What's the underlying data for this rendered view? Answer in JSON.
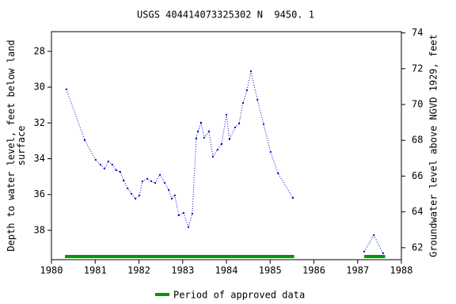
{
  "chart_data": {
    "type": "line",
    "title": "USGS 404414073325302 N  9450. 1",
    "y_label": "Depth to water level, feet below land surface",
    "y2_label": "Groundwater level above NGVD 1929, feet",
    "xlim": [
      1980,
      1988
    ],
    "xticks": [
      1980,
      1981,
      1982,
      1983,
      1984,
      1985,
      1986,
      1987,
      1988
    ],
    "ylim": [
      26.9,
      39.64
    ],
    "yticks": [
      28,
      30,
      32,
      34,
      36,
      38
    ],
    "y2lim": [
      74.07,
      61.33
    ],
    "y2ticks": [
      62,
      64,
      66,
      68,
      70,
      72,
      74
    ],
    "series": [
      {
        "color": "#0000cc",
        "x": [
          1980.34,
          1980.76,
          1981.01,
          1981.12,
          1981.21,
          1981.3,
          1981.39,
          1981.48,
          1981.57,
          1981.65,
          1981.74,
          1981.83,
          1981.92,
          1982.01,
          1982.08,
          1982.19,
          1982.28,
          1982.37,
          1982.48,
          1982.59,
          1982.68,
          1982.75,
          1982.82,
          1982.91,
          1983.02,
          1983.13,
          1983.22,
          1983.31,
          1983.35,
          1983.42,
          1983.49,
          1983.6,
          1983.69,
          1983.8,
          1983.89,
          1984.0,
          1984.07,
          1984.2,
          1984.29,
          1984.38,
          1984.47,
          1984.56,
          1984.71,
          1984.85,
          1985.01,
          1985.18,
          1985.52,
          null,
          1987.15,
          1987.37,
          1987.58
        ],
        "values": [
          30.12,
          32.96,
          34.06,
          34.33,
          34.55,
          34.15,
          34.33,
          34.64,
          34.73,
          35.21,
          35.65,
          35.96,
          36.23,
          36.05,
          35.26,
          35.12,
          35.26,
          35.35,
          34.9,
          35.35,
          35.74,
          36.23,
          36.05,
          37.16,
          37.03,
          37.82,
          37.07,
          32.87,
          32.47,
          31.98,
          32.82,
          32.47,
          33.88,
          33.49,
          33.18,
          31.54,
          32.91,
          32.25,
          32.03,
          30.88,
          30.17,
          29.11,
          30.7,
          32.07,
          33.62,
          34.81,
          36.19,
          null,
          39.19,
          38.27,
          39.28
        ]
      }
    ],
    "approved_periods": {
      "name": "Period of approved data",
      "color": "#009900",
      "ranges": [
        [
          1980.31,
          1985.55
        ],
        [
          1987.15,
          1987.63
        ]
      ]
    }
  }
}
